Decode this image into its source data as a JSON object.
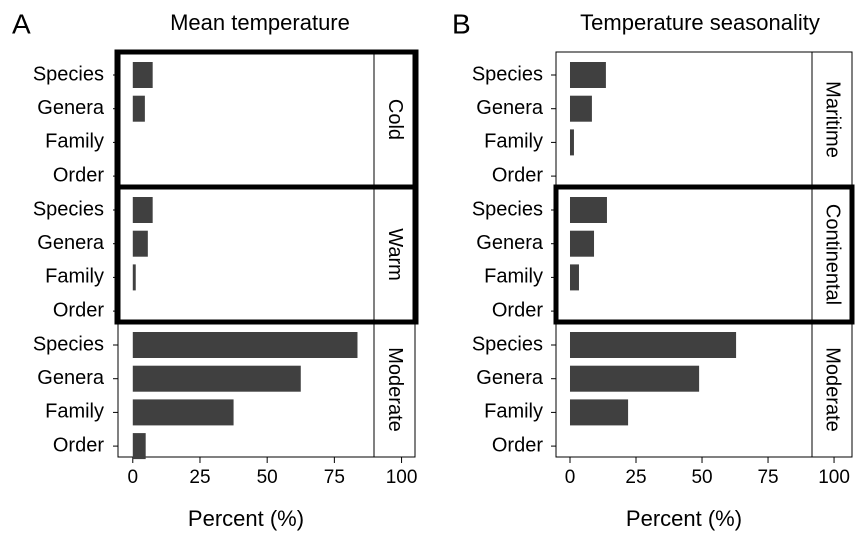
{
  "chart_data": [
    {
      "type": "bar",
      "panel_label": "A",
      "title": "Mean temperature",
      "xlabel": "Percent (%)",
      "categories": [
        "Species",
        "Genera",
        "Family",
        "Order"
      ],
      "facets": [
        {
          "name": "Cold",
          "values": [
            7.4,
            4.5,
            0,
            0
          ]
        },
        {
          "name": "Warm",
          "values": [
            7.4,
            5.6,
            1.1,
            0
          ]
        },
        {
          "name": "Moderate",
          "values": [
            83.6,
            62.5,
            37.5,
            4.8
          ]
        }
      ],
      "highlight_facets": [
        0,
        1
      ],
      "color": "#404040",
      "xlim": [
        -5.5,
        105
      ],
      "xticks": [
        0,
        25,
        50,
        75,
        100
      ]
    },
    {
      "type": "bar",
      "panel_label": "B",
      "title": "Temperature seasonality",
      "xlabel": "Percent (%)",
      "categories": [
        "Species",
        "Genera",
        "Family",
        "Order"
      ],
      "facets": [
        {
          "name": "Maritime",
          "values": [
            13.6,
            8.3,
            1.5,
            0
          ]
        },
        {
          "name": "Continental",
          "values": [
            14,
            9.1,
            3.4,
            0
          ]
        },
        {
          "name": "Moderate",
          "values": [
            62.9,
            48.9,
            22,
            0
          ]
        }
      ],
      "highlight_facets": [
        1
      ],
      "color": "#404040",
      "xlim": [
        -5.3,
        106.8
      ],
      "xticks": [
        0,
        25,
        50,
        75,
        100
      ]
    }
  ]
}
